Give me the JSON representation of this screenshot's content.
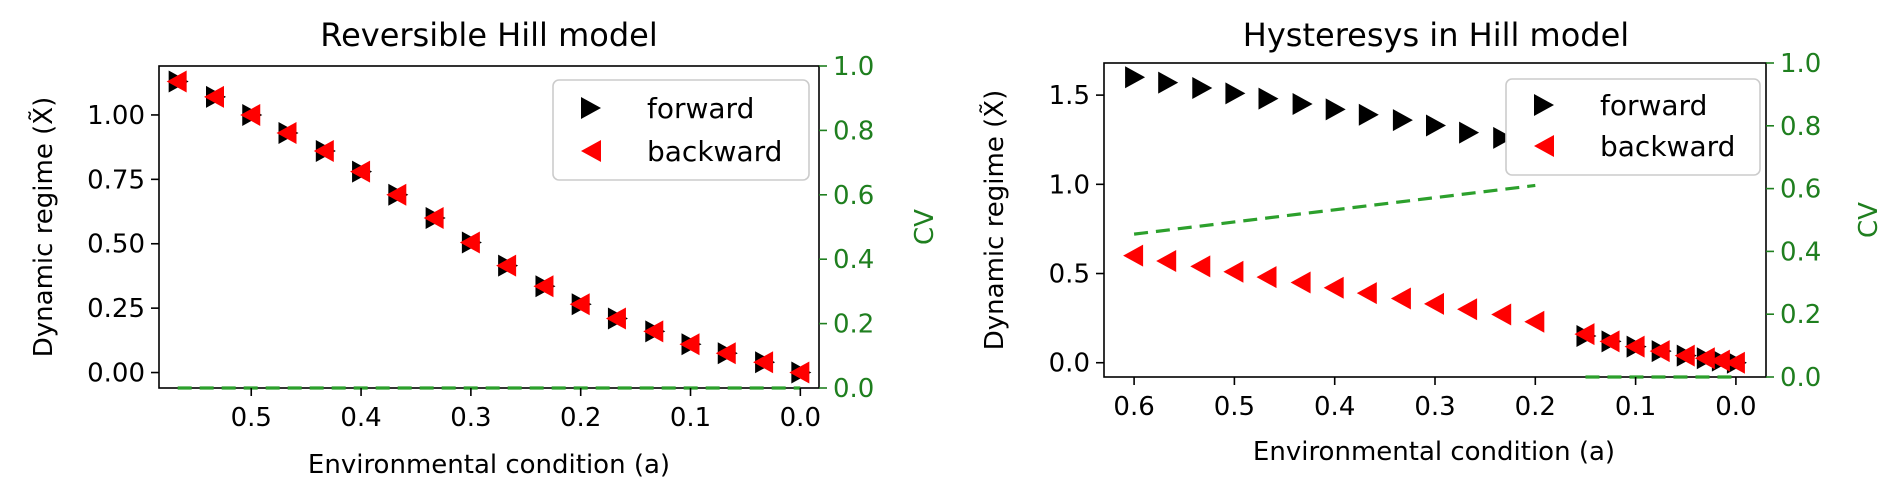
{
  "chart_data": [
    {
      "type": "scatter",
      "title": "Reversible Hill model",
      "xlabel": "Environmental condition (a)",
      "ylabel": "Dynamic regime (X̃)",
      "y2label": "CV",
      "x_inverted": true,
      "xlim": [
        0.584,
        -0.017
      ],
      "ylim": [
        -0.06,
        1.19
      ],
      "y2lim": [
        0,
        1
      ],
      "xticks": [
        "0.5",
        "0.4",
        "0.3",
        "0.2",
        "0.1",
        "0.0"
      ],
      "yticks": [
        "0.00",
        "0.25",
        "0.50",
        "0.75",
        "1.00"
      ],
      "y2ticks": [
        "0.0",
        "0.2",
        "0.4",
        "0.6",
        "0.8",
        "1.0"
      ],
      "legend_position": "top-right",
      "series": [
        {
          "name": "forward",
          "marker": "triangle-right",
          "color": "#000000",
          "points": [
            [
              0.567,
              1.13
            ],
            [
              0.533,
              1.07
            ],
            [
              0.5,
              1.0
            ],
            [
              0.467,
              0.93
            ],
            [
              0.433,
              0.86
            ],
            [
              0.4,
              0.78
            ],
            [
              0.367,
              0.69
            ],
            [
              0.333,
              0.6
            ],
            [
              0.3,
              0.505
            ],
            [
              0.267,
              0.415
            ],
            [
              0.233,
              0.335
            ],
            [
              0.2,
              0.265
            ],
            [
              0.167,
              0.21
            ],
            [
              0.133,
              0.16
            ],
            [
              0.1,
              0.11
            ],
            [
              0.067,
              0.075
            ],
            [
              0.033,
              0.04
            ],
            [
              0.0,
              0.0
            ]
          ]
        },
        {
          "name": "backward",
          "marker": "triangle-left",
          "color": "#ff0000",
          "points": [
            [
              0.567,
              1.13
            ],
            [
              0.533,
              1.07
            ],
            [
              0.5,
              1.0
            ],
            [
              0.467,
              0.93
            ],
            [
              0.433,
              0.86
            ],
            [
              0.4,
              0.78
            ],
            [
              0.367,
              0.69
            ],
            [
              0.333,
              0.6
            ],
            [
              0.3,
              0.505
            ],
            [
              0.267,
              0.415
            ],
            [
              0.233,
              0.335
            ],
            [
              0.2,
              0.265
            ],
            [
              0.167,
              0.21
            ],
            [
              0.133,
              0.16
            ],
            [
              0.1,
              0.11
            ],
            [
              0.067,
              0.075
            ],
            [
              0.033,
              0.04
            ],
            [
              0.0,
              0.0
            ]
          ]
        },
        {
          "axis": "y2",
          "style": "dashed",
          "color": "#2ca02c",
          "points": [
            [
              0.567,
              0.0
            ],
            [
              0.0,
              0.0
            ]
          ]
        }
      ]
    },
    {
      "type": "scatter",
      "title": "Hysteresys in Hill model",
      "xlabel": "Environmental condition (a)",
      "ylabel": "Dynamic regime (X̃)",
      "y2label": "CV",
      "x_inverted": true,
      "xlim": [
        0.63,
        -0.03
      ],
      "ylim": [
        -0.08,
        1.68
      ],
      "y2lim": [
        0,
        1
      ],
      "xticks": [
        "0.6",
        "0.5",
        "0.4",
        "0.3",
        "0.2",
        "0.1",
        "0.0"
      ],
      "yticks": [
        "0.0",
        "0.5",
        "1.0",
        "1.5"
      ],
      "y2ticks": [
        "0.0",
        "0.2",
        "0.4",
        "0.6",
        "0.8",
        "1.0"
      ],
      "legend_position": "top-right",
      "series": [
        {
          "name": "forward",
          "marker": "triangle-right",
          "color": "#000000",
          "points": [
            [
              0.6,
              1.6
            ],
            [
              0.567,
              1.57
            ],
            [
              0.533,
              1.54
            ],
            [
              0.5,
              1.51
            ],
            [
              0.467,
              1.48
            ],
            [
              0.433,
              1.45
            ],
            [
              0.4,
              1.42
            ],
            [
              0.367,
              1.39
            ],
            [
              0.333,
              1.36
            ],
            [
              0.3,
              1.33
            ],
            [
              0.267,
              1.29
            ],
            [
              0.233,
              1.26
            ],
            [
              0.2,
              1.22
            ],
            [
              0.15,
              0.15
            ],
            [
              0.125,
              0.12
            ],
            [
              0.1,
              0.09
            ],
            [
              0.075,
              0.065
            ],
            [
              0.05,
              0.04
            ],
            [
              0.03,
              0.025
            ],
            [
              0.015,
              0.012
            ],
            [
              0.0,
              0.0
            ]
          ]
        },
        {
          "name": "backward",
          "marker": "triangle-left",
          "color": "#ff0000",
          "points": [
            [
              0.6,
              0.6
            ],
            [
              0.567,
              0.57
            ],
            [
              0.533,
              0.54
            ],
            [
              0.5,
              0.51
            ],
            [
              0.467,
              0.48
            ],
            [
              0.433,
              0.45
            ],
            [
              0.4,
              0.42
            ],
            [
              0.367,
              0.39
            ],
            [
              0.333,
              0.36
            ],
            [
              0.3,
              0.33
            ],
            [
              0.267,
              0.3
            ],
            [
              0.233,
              0.27
            ],
            [
              0.2,
              0.23
            ],
            [
              0.15,
              0.16
            ],
            [
              0.125,
              0.12
            ],
            [
              0.1,
              0.09
            ],
            [
              0.075,
              0.065
            ],
            [
              0.05,
              0.04
            ],
            [
              0.03,
              0.025
            ],
            [
              0.015,
              0.012
            ],
            [
              0.0,
              0.0
            ]
          ]
        },
        {
          "axis": "y2",
          "style": "dashed",
          "color": "#2ca02c",
          "points": [
            [
              0.6,
              0.455
            ],
            [
              0.2,
              0.61
            ]
          ]
        },
        {
          "axis": "y2",
          "style": "dashed",
          "color": "#2ca02c",
          "points": [
            [
              0.15,
              0.0
            ],
            [
              0.0,
              0.0
            ]
          ]
        }
      ]
    }
  ]
}
